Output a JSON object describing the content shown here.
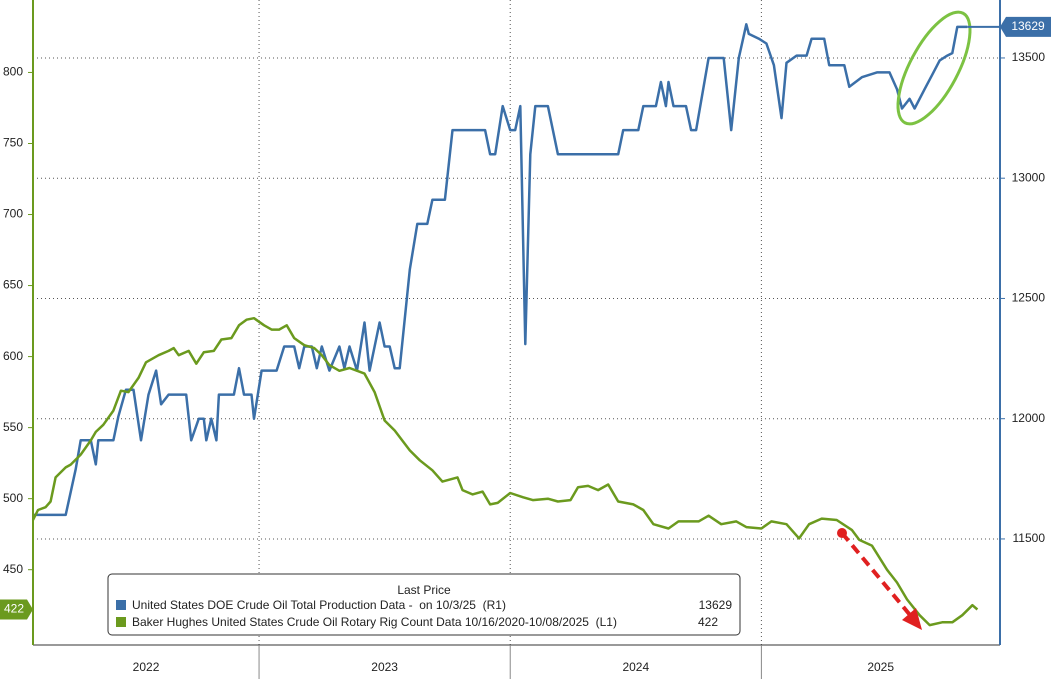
{
  "chart_data": {
    "type": "line",
    "legend_title": "Last Price",
    "xlim": [
      2022.1,
      2025.95
    ],
    "xticks": [
      {
        "value": 2022,
        "label": "2022"
      },
      {
        "value": 2023,
        "label": "2023"
      },
      {
        "value": 2024,
        "label": "2024"
      },
      {
        "value": 2025,
        "label": "2025"
      }
    ],
    "ylim": [
      397,
      851
    ],
    "yticks": [
      450,
      500,
      550,
      600,
      650,
      700,
      750,
      800
    ],
    "y2lim": [
      11059,
      13741
    ],
    "y2ticks": [
      11500,
      12000,
      12500,
      13000,
      13500
    ],
    "grid": true,
    "series": [
      {
        "name": "United States DOE Crude Oil Total Production Data -  on 10/3/25  (R1)",
        "color": "#3b6fa8",
        "axis": "y2",
        "x": [
          2022.1,
          2022.23,
          2022.27,
          2022.29,
          2022.33,
          2022.35,
          2022.36,
          2022.42,
          2022.44,
          2022.47,
          2022.5,
          2022.53,
          2022.56,
          2022.59,
          2022.61,
          2022.64,
          2022.71,
          2022.73,
          2022.76,
          2022.78,
          2022.79,
          2022.81,
          2022.83,
          2022.84,
          2022.9,
          2022.92,
          2022.94,
          2022.97,
          2022.98,
          2023.01,
          2023.07,
          2023.1,
          2023.14,
          2023.16,
          2023.18,
          2023.21,
          2023.23,
          2023.25,
          2023.28,
          2023.32,
          2023.34,
          2023.36,
          2023.39,
          2023.42,
          2023.44,
          2023.48,
          2023.5,
          2023.52,
          2023.54,
          2023.56,
          2023.6,
          2023.63,
          2023.67,
          2023.69,
          2023.74,
          2023.77,
          2023.9,
          2023.92,
          2023.94,
          2023.97,
          2024.0,
          2024.02,
          2024.04,
          2024.06,
          2024.08,
          2024.1,
          2024.15,
          2024.19,
          2024.43,
          2024.45,
          2024.51,
          2024.53,
          2024.58,
          2024.6,
          2024.62,
          2024.63,
          2024.65,
          2024.7,
          2024.72,
          2024.74,
          2024.79,
          2024.85,
          2024.88,
          2024.91,
          2024.94,
          2024.95,
          2024.99,
          2025.02,
          2025.05,
          2025.08,
          2025.1,
          2025.14,
          2025.18,
          2025.2,
          2025.25,
          2025.27,
          2025.33,
          2025.35,
          2025.4,
          2025.46,
          2025.51,
          2025.54,
          2025.56,
          2025.59,
          2025.61,
          2025.65,
          2025.68,
          2025.71,
          2025.74,
          2025.76,
          2025.78,
          2025.82
        ],
        "values": [
          11600,
          11600,
          11790,
          11910,
          11910,
          11810,
          11910,
          11910,
          12010,
          12120,
          12120,
          11910,
          12100,
          12200,
          12060,
          12100,
          12100,
          11910,
          12000,
          12000,
          11910,
          12000,
          11910,
          12100,
          12100,
          12210,
          12100,
          12100,
          12000,
          12200,
          12200,
          12300,
          12300,
          12210,
          12300,
          12300,
          12210,
          12300,
          12200,
          12300,
          12210,
          12300,
          12200,
          12400,
          12200,
          12400,
          12300,
          12300,
          12210,
          12210,
          12620,
          12810,
          12810,
          12910,
          12910,
          13200,
          13200,
          13100,
          13100,
          13300,
          13200,
          13200,
          13300,
          12310,
          13100,
          13300,
          13300,
          13100,
          13100,
          13200,
          13200,
          13300,
          13300,
          13400,
          13300,
          13400,
          13300,
          13300,
          13200,
          13200,
          13500,
          13500,
          13200,
          13500,
          13640,
          13600,
          13580,
          13560,
          13470,
          13250,
          13480,
          13510,
          13510,
          13580,
          13580,
          13470,
          13470,
          13380,
          13420,
          13440,
          13440,
          13370,
          13290,
          13330,
          13290,
          13370,
          13430,
          13490,
          13510,
          13520,
          13629,
          13629
        ]
      },
      {
        "name": "Baker Hughes United States Crude Oil Rotary Rig Count Data 10/16/2020-10/08/2025  (L1)",
        "color": "#6b9a1e",
        "axis": "y",
        "x": [
          2022.1,
          2022.12,
          2022.15,
          2022.17,
          2022.19,
          2022.23,
          2022.25,
          2022.29,
          2022.33,
          2022.35,
          2022.38,
          2022.42,
          2022.45,
          2022.48,
          2022.52,
          2022.55,
          2022.6,
          2022.64,
          2022.66,
          2022.68,
          2022.72,
          2022.75,
          2022.78,
          2022.82,
          2022.85,
          2022.89,
          2022.92,
          2022.95,
          2022.98,
          2023.02,
          2023.05,
          2023.08,
          2023.11,
          2023.14,
          2023.18,
          2023.22,
          2023.25,
          2023.28,
          2023.32,
          2023.36,
          2023.42,
          2023.46,
          2023.5,
          2023.54,
          2023.6,
          2023.64,
          2023.69,
          2023.73,
          2023.79,
          2023.81,
          2023.85,
          2023.89,
          2023.92,
          2023.95,
          2024.0,
          2024.05,
          2024.09,
          2024.15,
          2024.19,
          2024.24,
          2024.27,
          2024.31,
          2024.35,
          2024.39,
          2024.43,
          2024.49,
          2024.53,
          2024.57,
          2024.63,
          2024.67,
          2024.75,
          2024.79,
          2024.84,
          2024.9,
          2024.94,
          2025.0,
          2025.04,
          2025.1,
          2025.15,
          2025.19,
          2025.24,
          2025.3,
          2025.36,
          2025.39,
          2025.44,
          2025.5,
          2025.54,
          2025.58,
          2025.63,
          2025.67,
          2025.72,
          2025.76,
          2025.8,
          2025.84,
          2025.86
        ],
        "values": [
          485,
          492,
          494,
          498,
          515,
          522,
          524,
          531,
          541,
          547,
          552,
          562,
          576,
          575,
          585,
          596,
          601,
          604,
          606,
          601,
          604,
          595,
          603,
          604,
          612,
          613,
          622,
          626,
          627,
          622,
          619,
          619,
          622,
          613,
          608,
          606,
          601,
          594,
          590,
          592,
          588,
          575,
          555,
          548,
          534,
          527,
          520,
          512,
          515,
          506,
          503,
          505,
          496,
          497,
          504,
          501,
          499,
          500,
          498,
          499,
          508,
          509,
          506,
          510,
          498,
          496,
          492,
          482,
          479,
          484,
          484,
          488,
          482,
          484,
          480,
          479,
          484,
          482,
          472,
          482,
          486,
          485,
          478,
          471,
          467,
          450,
          441,
          429,
          418,
          411,
          413,
          413,
          418,
          425,
          422
        ]
      }
    ]
  }
}
